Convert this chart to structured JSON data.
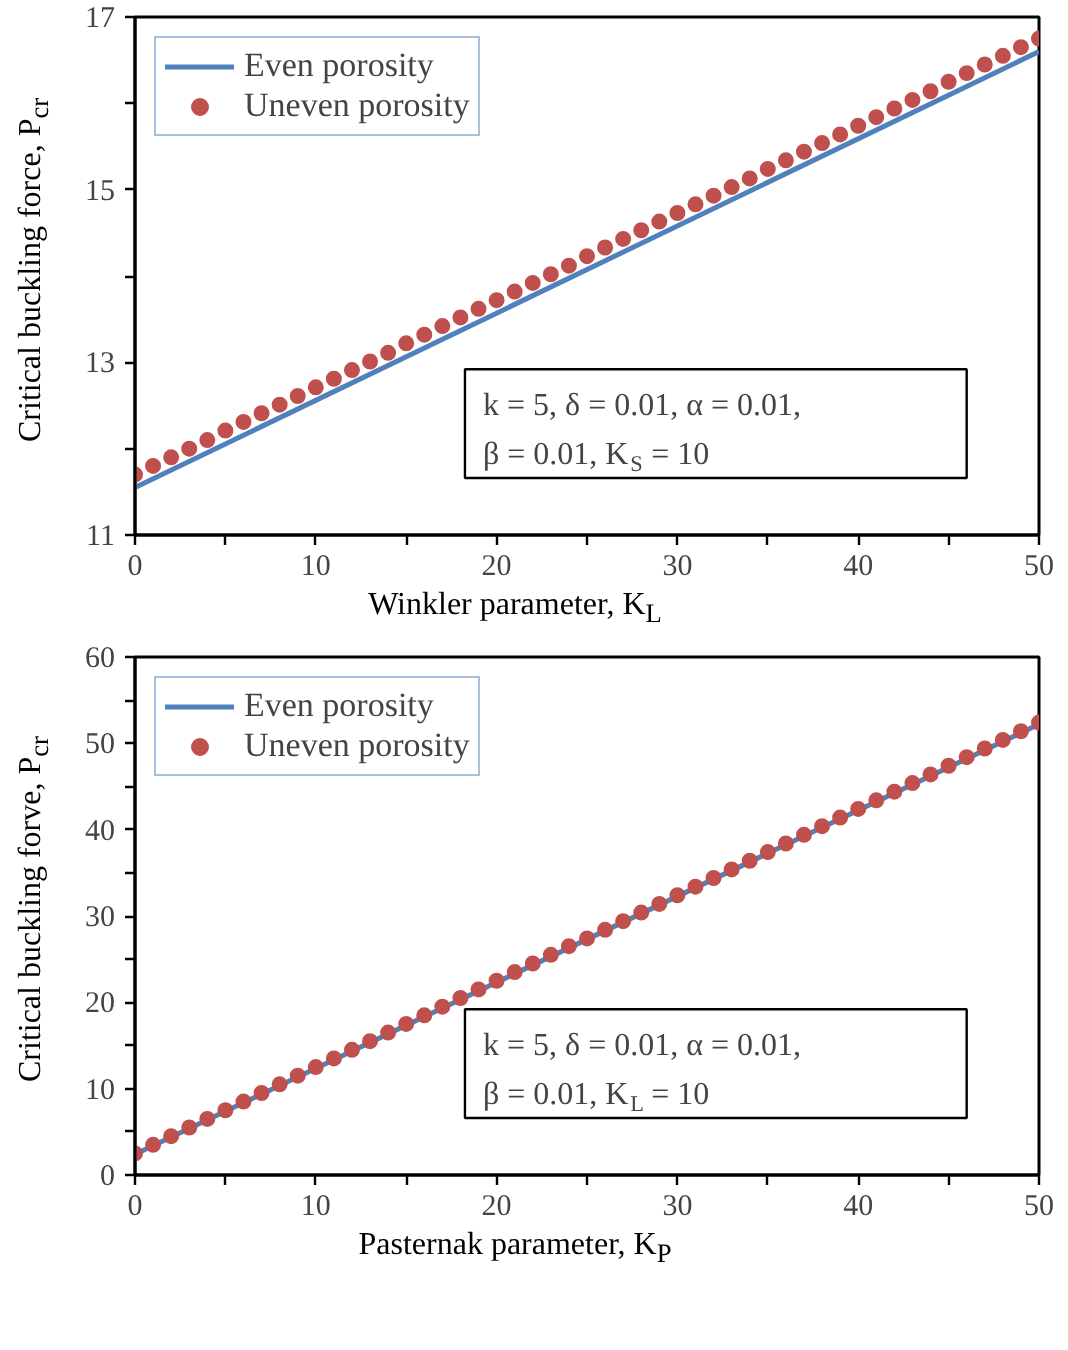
{
  "chart_data": [
    {
      "type": "line",
      "xlabel": "Winkler parameter, K$_{L}$",
      "ylabel": "Critical buckling force, P$_{cr}$",
      "xlim": [
        0,
        50
      ],
      "ylim": [
        11,
        17
      ],
      "xticks": [
        0,
        {
          "value": 5,
          "label": null
        },
        10,
        {
          "value": 15,
          "label": null
        },
        20,
        {
          "value": 25,
          "label": null
        },
        30,
        {
          "value": 35,
          "label": null
        },
        40,
        {
          "value": 45,
          "label": null
        },
        50
      ],
      "yticks": [
        11,
        {
          "value": 12,
          "label": null
        },
        13,
        {
          "value": 14,
          "label": null
        },
        15,
        {
          "value": 16,
          "label": null
        },
        17
      ],
      "grid": false,
      "legend": "top left",
      "annotations": [
        "k = 5, δ = 0.01, α = 0.01,\nβ = 0.01, K$_{S}$ = 10"
      ],
      "series": [
        {
          "name": "Even porosity",
          "color": "#4f81bd",
          "marker": "none",
          "line_style": "solid",
          "x": [
            0,
            50
          ],
          "values": [
            11.55,
            16.6
          ]
        },
        {
          "name": "Uneven porosity",
          "type": "scatter",
          "color": "#c0504d",
          "marker": "circle",
          "x": [
            0,
            1,
            2,
            3,
            4,
            5,
            6,
            7,
            8,
            9,
            10,
            11,
            12,
            13,
            14,
            15,
            16,
            17,
            18,
            19,
            20,
            21,
            22,
            23,
            24,
            25,
            26,
            27,
            28,
            29,
            30,
            31,
            32,
            33,
            34,
            35,
            36,
            37,
            38,
            39,
            40,
            41,
            42,
            43,
            44,
            45,
            46,
            47,
            48,
            49,
            50
          ],
          "values": [
            11.7,
            11.8,
            11.9,
            12.0,
            12.1,
            12.21,
            12.31,
            12.41,
            12.51,
            12.61,
            12.71,
            12.81,
            12.91,
            13.01,
            13.11,
            13.22,
            13.32,
            13.42,
            13.52,
            13.62,
            13.72,
            13.82,
            13.92,
            14.02,
            14.12,
            14.23,
            14.33,
            14.43,
            14.53,
            14.63,
            14.73,
            14.83,
            14.93,
            15.03,
            15.13,
            15.24,
            15.34,
            15.44,
            15.54,
            15.64,
            15.74,
            15.84,
            15.94,
            16.04,
            16.14,
            16.25,
            16.35,
            16.45,
            16.55,
            16.65,
            16.75
          ]
        }
      ]
    },
    {
      "type": "line",
      "xlabel": "Pasternak parameter, K$_{P}$",
      "ylabel": "Critical buckling forve, P$_{cr}$",
      "xlim": [
        0,
        50
      ],
      "ylim": [
        0,
        60
      ],
      "xticks": [
        0,
        {
          "value": 5,
          "label": null
        },
        10,
        {
          "value": 15,
          "label": null
        },
        20,
        {
          "value": 25,
          "label": null
        },
        30,
        {
          "value": 35,
          "label": null
        },
        40,
        {
          "value": 45,
          "label": null
        },
        50
      ],
      "yticks": [
        0,
        {
          "value": 5,
          "label": null
        },
        10,
        {
          "value": 15,
          "label": null
        },
        20,
        {
          "value": 25,
          "label": null
        },
        30,
        {
          "value": 35,
          "label": null
        },
        40,
        {
          "value": 45,
          "label": null
        },
        50,
        {
          "value": 55,
          "label": null
        },
        60
      ],
      "grid": false,
      "legend": "top left",
      "annotations": [
        "k = 5, δ = 0.01, α = 0.01,\nβ = 0.01, K$_{L}$ = 10"
      ],
      "series": [
        {
          "name": "Even porosity",
          "color": "#4f81bd",
          "marker": "none",
          "line_style": "solid",
          "x": [
            0,
            50
          ],
          "values": [
            2.4,
            52.2
          ]
        },
        {
          "name": "Uneven porosity",
          "type": "scatter",
          "color": "#c0504d",
          "marker": "circle",
          "x": [
            0,
            1,
            2,
            3,
            4,
            5,
            6,
            7,
            8,
            9,
            10,
            11,
            12,
            13,
            14,
            15,
            16,
            17,
            18,
            19,
            20,
            21,
            22,
            23,
            24,
            25,
            26,
            27,
            28,
            29,
            30,
            31,
            32,
            33,
            34,
            35,
            36,
            37,
            38,
            39,
            40,
            41,
            42,
            43,
            44,
            45,
            46,
            47,
            48,
            49,
            50
          ],
          "values": [
            2.5,
            3.5,
            4.5,
            5.5,
            6.5,
            7.5,
            8.5,
            9.5,
            10.5,
            11.5,
            12.5,
            13.5,
            14.5,
            15.5,
            16.5,
            17.5,
            18.5,
            19.5,
            20.5,
            21.5,
            22.5,
            23.5,
            24.5,
            25.5,
            26.5,
            27.4,
            28.4,
            29.4,
            30.4,
            31.4,
            32.4,
            33.4,
            34.4,
            35.4,
            36.4,
            37.4,
            38.4,
            39.4,
            40.4,
            41.4,
            42.4,
            43.4,
            44.4,
            45.4,
            46.4,
            47.4,
            48.4,
            49.4,
            50.4,
            51.4,
            52.4
          ]
        }
      ]
    }
  ]
}
